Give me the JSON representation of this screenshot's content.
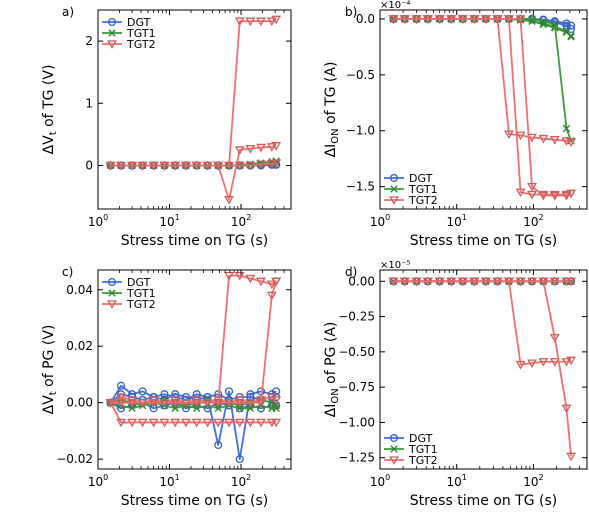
{
  "chart_data": [
    {
      "panel": "a)",
      "type": "line",
      "xscale": "log",
      "xlabel": "Stress time on TG (s)",
      "ylabel": "ΔV_t of TG (V)",
      "xlim": [
        1,
        500
      ],
      "ylim": [
        -0.7,
        2.5
      ],
      "yticks": [
        0,
        1,
        2
      ],
      "yticklabels": [
        "0",
        "1",
        "2"
      ],
      "exponent": "",
      "legend": "top-left",
      "x": [
        1.5,
        2.1,
        3,
        4.2,
        6,
        8.5,
        12,
        17,
        24,
        34,
        48,
        68,
        96,
        135,
        190,
        270,
        310
      ],
      "series": [
        {
          "name": "DGT",
          "color": "#3f6fe5",
          "marker": "o",
          "curves": [
            [
              0,
              0,
              0,
              0,
              0,
              0,
              0,
              0,
              0,
              0,
              0,
              0,
              0,
              0,
              0.01,
              0.02,
              0.02
            ],
            [
              0,
              0,
              0,
              0,
              0,
              0,
              0,
              0,
              0,
              0,
              0,
              0,
              0,
              0,
              0,
              0.01,
              0.01
            ]
          ]
        },
        {
          "name": "TGT1",
          "color": "#3c9b3c",
          "marker": "x",
          "curves": [
            [
              0,
              0,
              0,
              0,
              0,
              0,
              0,
              0,
              0,
              0,
              0,
              0,
              0.01,
              0.02,
              0.04,
              0.06,
              0.07
            ],
            [
              0,
              0,
              0,
              0,
              0,
              0,
              0,
              0,
              0,
              0,
              0,
              0,
              0,
              0.01,
              0.03,
              0.04,
              0.05
            ]
          ]
        },
        {
          "name": "TGT2",
          "color": "#f26f6f",
          "marker": "v",
          "curves": [
            [
              0,
              0,
              0,
              0,
              0,
              0,
              0,
              0,
              0,
              0,
              0,
              0,
              2.32,
              2.32,
              2.32,
              2.32,
              2.35
            ],
            [
              0,
              0,
              0,
              0,
              0,
              0,
              0,
              0,
              0,
              0,
              0,
              -0.55,
              0.25,
              0.27,
              0.29,
              0.3,
              0.32
            ],
            [
              0,
              0,
              0,
              0,
              0,
              0,
              0,
              0,
              0,
              0,
              0,
              0,
              0,
              0,
              0.02,
              0.03,
              0.04
            ]
          ]
        }
      ]
    },
    {
      "panel": "b)",
      "type": "line",
      "xscale": "log",
      "xlabel": "Stress time on TG (s)",
      "ylabel": "ΔI_ON of TG (A)",
      "xlim": [
        1,
        500
      ],
      "ylim": [
        -1.7,
        0.08
      ],
      "yticks": [
        0,
        -0.5,
        -1.0,
        -1.5
      ],
      "yticklabels": [
        "0.0",
        "−0.5",
        "−1.0",
        "−1.5"
      ],
      "exponent": "×10⁻⁴",
      "legend": "bottom-left",
      "x": [
        1.5,
        2.1,
        3,
        4.2,
        6,
        8.5,
        12,
        17,
        24,
        34,
        48,
        68,
        96,
        135,
        190,
        270,
        310
      ],
      "series": [
        {
          "name": "DGT",
          "color": "#3f6fe5",
          "marker": "o",
          "curves": [
            [
              0,
              0,
              0,
              0,
              0,
              0,
              0,
              0,
              0,
              0,
              0,
              0,
              -0.005,
              -0.01,
              -0.03,
              -0.06,
              -0.09
            ],
            [
              0,
              0,
              0,
              0,
              0,
              0,
              0,
              0,
              0,
              0,
              0,
              0,
              0,
              -0.005,
              -0.02,
              -0.04,
              -0.06
            ]
          ]
        },
        {
          "name": "TGT1",
          "color": "#3c9b3c",
          "marker": "x",
          "curves": [
            [
              0,
              0,
              0,
              0,
              0,
              0,
              0,
              0,
              0,
              0,
              0,
              -0.01,
              -0.02,
              -0.05,
              -0.08,
              -0.12,
              -0.15
            ],
            [
              0,
              0,
              0,
              0,
              0,
              0,
              0,
              0,
              0,
              0,
              0,
              0,
              -0.02,
              -0.04,
              -0.07,
              -0.11,
              -0.16
            ],
            [
              0,
              0,
              0,
              0,
              0,
              0,
              0,
              0,
              0,
              0,
              0,
              0,
              0,
              -0.02,
              -0.05,
              -0.98,
              -1.09
            ]
          ]
        },
        {
          "name": "TGT2",
          "color": "#f26f6f",
          "marker": "v",
          "curves": [
            [
              0,
              0,
              0,
              0,
              0,
              0,
              0,
              0,
              0,
              0,
              0,
              -1.55,
              -1.57,
              -1.57,
              -1.57,
              -1.57,
              -1.56
            ],
            [
              0,
              0,
              0,
              0,
              0,
              0,
              0,
              0,
              0,
              0,
              -1.03,
              -1.04,
              -1.06,
              -1.07,
              -1.08,
              -1.09,
              -1.1
            ],
            [
              0,
              0,
              0,
              0,
              0,
              0,
              0,
              0,
              0,
              0,
              0,
              0,
              -1.5,
              -1.58,
              -1.58,
              -1.58,
              -1.56
            ]
          ]
        }
      ]
    },
    {
      "panel": "c)",
      "type": "line",
      "xscale": "log",
      "xlabel": "Stress time on TG (s)",
      "ylabel": "ΔV_t of PG (V)",
      "xlim": [
        1,
        500
      ],
      "ylim": [
        -0.0235,
        0.047
      ],
      "yticks": [
        -0.02,
        0,
        0.02,
        0.04
      ],
      "yticklabels": [
        "−0.02",
        "0.00",
        "0.02",
        "0.04"
      ],
      "exponent": "",
      "legend": "top-left",
      "x": [
        1.5,
        2.1,
        3,
        4.2,
        6,
        8.5,
        12,
        17,
        24,
        34,
        48,
        68,
        96,
        135,
        190,
        270,
        310
      ],
      "series": [
        {
          "name": "DGT",
          "color": "#3f6fe5",
          "marker": "o",
          "curves": [
            [
              0,
              0.006,
              0.003,
              0.004,
              0.002,
              0.003,
              0.002,
              0.001,
              0.003,
              0.002,
              -0.015,
              0.004,
              -0.02,
              0.003,
              0.004,
              0.003,
              0.004
            ],
            [
              0,
              0.003,
              0.002,
              0.001,
              0.002,
              0.001,
              0.003,
              0.002,
              0.001,
              0.002,
              0.003,
              0.001,
              0.002,
              0.002,
              0.001,
              0.002,
              0.002
            ],
            [
              0,
              -0.002,
              -0.001,
              0,
              -0.002,
              -0.001,
              0,
              -0.002,
              -0.001,
              -0.002,
              0,
              -0.001,
              -0.002,
              -0.001,
              -0.002,
              -0.001,
              -0.001
            ]
          ]
        },
        {
          "name": "TGT1",
          "color": "#3c9b3c",
          "marker": "x",
          "curves": [
            [
              0,
              0.001,
              0,
              -0.001,
              0,
              0.001,
              0,
              -0.001,
              0,
              0.001,
              0,
              0,
              -0.001,
              0,
              0.001,
              0,
              -0.001
            ],
            [
              0,
              -0.001,
              -0.002,
              -0.001,
              0,
              -0.001,
              -0.002,
              -0.001,
              -0.002,
              -0.001,
              -0.002,
              -0.001,
              -0.002,
              -0.002,
              -0.001,
              -0.002,
              -0.002
            ]
          ]
        },
        {
          "name": "TGT2",
          "color": "#f26f6f",
          "marker": "v",
          "curves": [
            [
              0,
              0,
              0,
              0,
              0,
              0,
              0,
              0,
              0,
              0,
              0,
              0.045,
              0.045,
              0.044,
              0.043,
              0.042,
              0.043
            ],
            [
              0,
              -0.007,
              -0.007,
              -0.007,
              -0.007,
              -0.007,
              -0.007,
              -0.007,
              -0.007,
              -0.007,
              -0.007,
              -0.007,
              -0.007,
              -0.007,
              -0.007,
              -0.007,
              -0.007
            ],
            [
              0,
              0.002,
              0.001,
              0,
              0.001,
              0,
              0.001,
              0,
              0.001,
              0,
              0.001,
              0,
              0.001,
              0,
              0.001,
              0.002,
              0.001
            ],
            [
              0,
              0,
              0,
              0,
              0,
              0,
              0,
              0,
              0,
              0,
              0,
              0,
              0,
              0,
              0,
              0.038,
              0.043
            ]
          ]
        }
      ]
    },
    {
      "panel": "d)",
      "type": "line",
      "xscale": "log",
      "xlabel": "Stress time on TG (s)",
      "ylabel": "ΔI_ON of PG (A)",
      "xlim": [
        1,
        500
      ],
      "ylim": [
        -1.33,
        0.08
      ],
      "yticks": [
        0,
        -0.25,
        -0.5,
        -0.75,
        -1.0,
        -1.25
      ],
      "yticklabels": [
        "0.00",
        "−0.25",
        "−0.50",
        "−0.75",
        "−1.00",
        "−1.25"
      ],
      "exponent": "×10⁻⁵",
      "legend": "bottom-left",
      "x": [
        1.5,
        2.1,
        3,
        4.2,
        6,
        8.5,
        12,
        17,
        24,
        34,
        48,
        68,
        96,
        135,
        190,
        270,
        310
      ],
      "series": [
        {
          "name": "DGT",
          "color": "#3f6fe5",
          "marker": "o",
          "curves": [
            [
              0,
              0,
              0,
              0,
              0,
              0,
              0,
              0,
              0,
              0,
              0,
              0,
              0,
              0,
              0,
              0,
              0
            ]
          ]
        },
        {
          "name": "TGT1",
          "color": "#3c9b3c",
          "marker": "x",
          "curves": [
            [
              0,
              0,
              0,
              0,
              0,
              0,
              0,
              0,
              0,
              0,
              0,
              0,
              0,
              0,
              0,
              0,
              0
            ]
          ]
        },
        {
          "name": "TGT2",
          "color": "#f26f6f",
          "marker": "v",
          "curves": [
            [
              0,
              0,
              0,
              0,
              0,
              0,
              0,
              0,
              0,
              0,
              0,
              -0.59,
              -0.58,
              -0.57,
              -0.57,
              -0.57,
              -0.56
            ],
            [
              0,
              0,
              0,
              0,
              0,
              0,
              0,
              0,
              0,
              0,
              0,
              0,
              0,
              0,
              -0.4,
              -0.9,
              -1.24
            ],
            [
              0,
              0,
              0,
              0,
              0,
              0,
              0,
              0,
              0,
              0,
              0,
              0,
              0,
              0,
              0,
              0,
              0
            ]
          ]
        }
      ]
    }
  ]
}
